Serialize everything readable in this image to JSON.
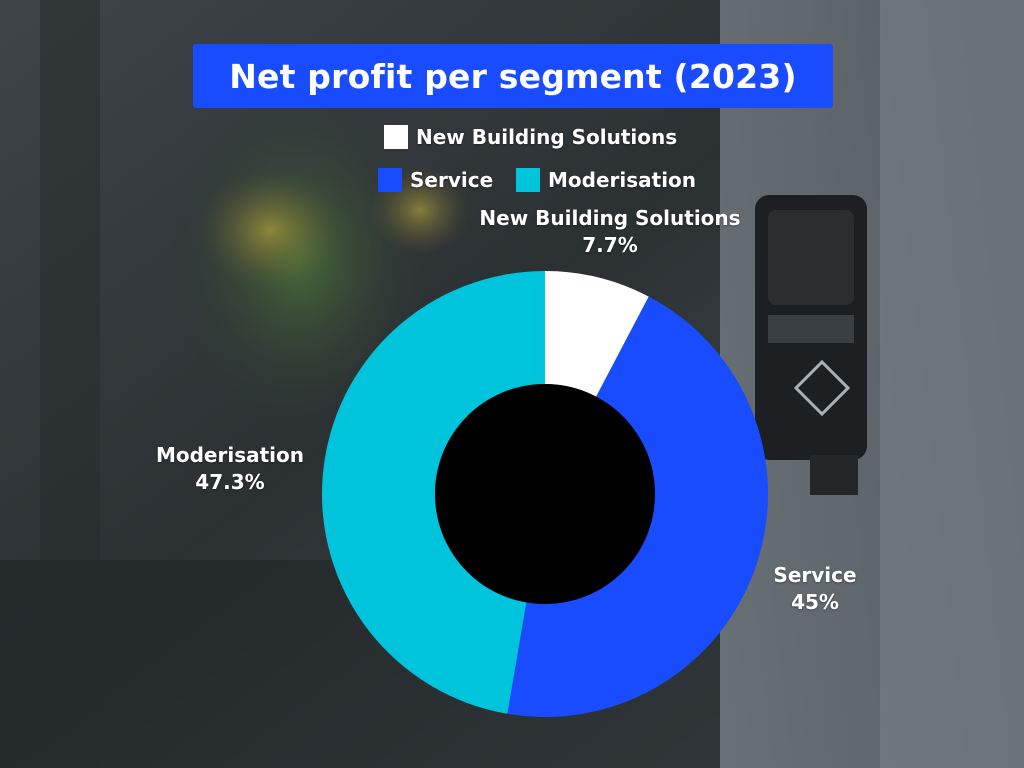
{
  "chart_data": {
    "type": "pie",
    "title": "Net profit per segment (2023)",
    "categories": [
      "New Building Solutions",
      "Service",
      "Moderisation"
    ],
    "values": [
      7.7,
      45,
      47.3
    ],
    "value_labels": [
      "7.7%",
      "45%",
      "47.3%"
    ],
    "colors": [
      "#ffffff",
      "#1a4cff",
      "#00c4db"
    ],
    "hole_color": "#000000",
    "legend": {
      "placement": "top",
      "entries": [
        "New Building Solutions",
        "Service",
        "Moderisation"
      ]
    }
  },
  "colors": {
    "title_background": "#1a4cff",
    "text": "#ffffff"
  }
}
